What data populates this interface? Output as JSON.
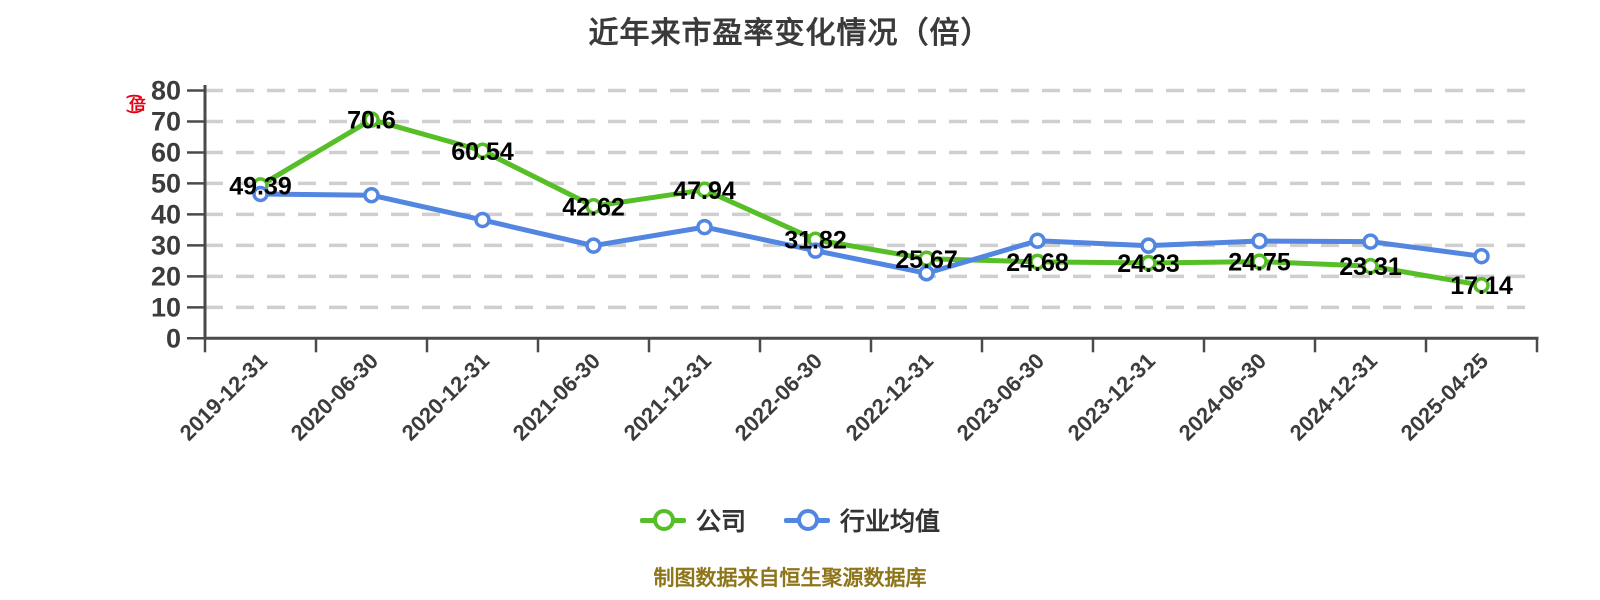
{
  "title": "近年来市盈率变化情况（倍）",
  "y_axis_name": "(倍)",
  "source_note": "制图数据来自恒生聚源数据库",
  "colors": {
    "company": "#56be26",
    "industry": "#5286e0",
    "grid": "#cfcfcf",
    "axis": "#4a4a4a",
    "tick_text": "#3c3c3c",
    "point_label": "#000000",
    "y_axis_name": "#e60012",
    "source_note": "#8f751a",
    "background": "#ffffff"
  },
  "chart_data": {
    "type": "line",
    "title": "近年来市盈率变化情况（倍）",
    "categories": [
      "2019-12-31",
      "2020-06-30",
      "2020-12-31",
      "2021-06-30",
      "2021-12-31",
      "2022-06-30",
      "2022-12-31",
      "2023-06-30",
      "2023-12-31",
      "2024-06-30",
      "2024-12-31",
      "2025-04-25"
    ],
    "series": [
      {
        "name": "公司",
        "color": "#56be26",
        "values": [
          49.39,
          70.6,
          60.54,
          42.62,
          47.94,
          31.82,
          25.67,
          24.68,
          24.33,
          24.75,
          23.31,
          17.14
        ],
        "point_labels": true
      },
      {
        "name": "行业均值",
        "color": "#5286e0",
        "values": [
          46.6,
          46.2,
          38.2,
          29.9,
          35.9,
          28.3,
          21.0,
          31.5,
          29.9,
          31.4,
          31.2,
          26.5
        ],
        "point_labels": false
      }
    ],
    "ylim": [
      0,
      80
    ],
    "y_tick_step": 10,
    "xlabel": "",
    "ylabel": "(倍)",
    "grid": "horizontal-dashed",
    "legend_position": "bottom",
    "x_label_rotate": 45
  }
}
